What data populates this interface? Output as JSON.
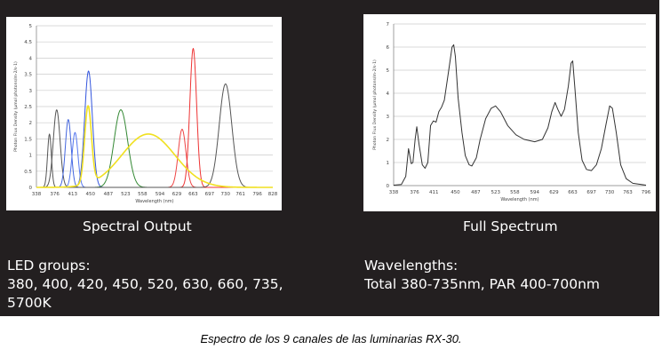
{
  "left_panel": {
    "title": "Spectral Output",
    "heading": "LED groups:",
    "lines": [
      "380, 400, 420, 450, 520, 630, 660, 735,",
      "5700K"
    ]
  },
  "right_panel": {
    "title": "Full Spectrum",
    "heading": "Wavelengths:",
    "lines": [
      "Total 380-735nm, PAR 400-700nm"
    ]
  },
  "caption": "Espectro de los 9 canales de las luminarias RX-30.",
  "chart_data": [
    {
      "type": "line",
      "xlabel": "Wavelength (nm)",
      "ylabel": "Photon Flux Density (µmol photons/m-2/s-1)",
      "x_ticks": [
        "338",
        "376",
        "413",
        "450",
        "487",
        "523",
        "558",
        "594",
        "629",
        "663",
        "697",
        "730",
        "761",
        "796",
        "828"
      ],
      "y_ticks": [
        "0",
        "0.5",
        "1",
        "1.5",
        "2",
        "2.5",
        "3",
        "3.5",
        "4",
        "4.5",
        "5"
      ],
      "xlim": [
        338,
        828
      ],
      "ylim": [
        0,
        5
      ],
      "grid": true,
      "series": [
        {
          "color": "#555555",
          "peaks": [
            {
              "x": 365,
              "y": 1.65,
              "w": 4
            }
          ]
        },
        {
          "color": "#555555",
          "peaks": [
            {
              "x": 380,
              "y": 2.4,
              "w": 7
            }
          ]
        },
        {
          "color": "#4466dd",
          "peaks": [
            {
              "x": 404,
              "y": 2.1,
              "w": 6
            }
          ]
        },
        {
          "color": "#5577ee",
          "peaks": [
            {
              "x": 418,
              "y": 1.7,
              "w": 6
            }
          ]
        },
        {
          "color": "#3355dd",
          "peaks": [
            {
              "x": 446,
              "y": 3.6,
              "w": 8
            }
          ]
        },
        {
          "color": "#338833",
          "peaks": [
            {
              "x": 513,
              "y": 2.4,
              "w": 14
            }
          ]
        },
        {
          "color": "#ee4444",
          "peaks": [
            {
              "x": 640,
              "y": 1.8,
              "w": 8
            }
          ]
        },
        {
          "color": "#ee3333",
          "peaks": [
            {
              "x": 663,
              "y": 4.3,
              "w": 7
            }
          ]
        },
        {
          "color": "#555555",
          "peaks": [
            {
              "x": 730,
              "y": 3.2,
              "w": 13
            }
          ]
        },
        {
          "color": "#f0e020",
          "peaks": [
            {
              "x": 445,
              "y": 2.4,
              "w": 7
            },
            {
              "x": 570,
              "y": 1.65,
              "w": 55
            }
          ]
        }
      ]
    },
    {
      "type": "line",
      "xlabel": "Wavelength (nm)",
      "ylabel": "Photon Flux Density (µmol photons/m-2/s-1)",
      "x_ticks": [
        "338",
        "376",
        "411",
        "450",
        "487",
        "523",
        "558",
        "594",
        "629",
        "663",
        "697",
        "730",
        "763",
        "796"
      ],
      "y_ticks": [
        "0",
        "1",
        "2",
        "3",
        "4",
        "5",
        "6",
        "7"
      ],
      "xlim": [
        338,
        796
      ],
      "ylim": [
        0,
        7
      ],
      "grid": true,
      "series": [
        {
          "color": "#333333",
          "points": [
            [
              338,
              0.02
            ],
            [
              352,
              0.05
            ],
            [
              360,
              0.4
            ],
            [
              365,
              1.6
            ],
            [
              370,
              0.95
            ],
            [
              373,
              1.0
            ],
            [
              377,
              2.0
            ],
            [
              380,
              2.55
            ],
            [
              384,
              1.8
            ],
            [
              390,
              0.9
            ],
            [
              395,
              0.75
            ],
            [
              400,
              1.0
            ],
            [
              405,
              2.6
            ],
            [
              410,
              2.8
            ],
            [
              415,
              2.75
            ],
            [
              420,
              3.2
            ],
            [
              425,
              3.4
            ],
            [
              430,
              3.7
            ],
            [
              438,
              5.0
            ],
            [
              444,
              6.0
            ],
            [
              447,
              6.1
            ],
            [
              450,
              5.6
            ],
            [
              455,
              3.8
            ],
            [
              462,
              2.3
            ],
            [
              468,
              1.3
            ],
            [
              475,
              0.9
            ],
            [
              480,
              0.85
            ],
            [
              488,
              1.2
            ],
            [
              495,
              2.0
            ],
            [
              505,
              2.9
            ],
            [
              515,
              3.35
            ],
            [
              523,
              3.45
            ],
            [
              532,
              3.2
            ],
            [
              545,
              2.6
            ],
            [
              560,
              2.2
            ],
            [
              575,
              2.0
            ],
            [
              594,
              1.9
            ],
            [
              608,
              2.0
            ],
            [
              618,
              2.5
            ],
            [
              625,
              3.2
            ],
            [
              631,
              3.6
            ],
            [
              636,
              3.3
            ],
            [
              642,
              3.0
            ],
            [
              648,
              3.3
            ],
            [
              655,
              4.3
            ],
            [
              660,
              5.3
            ],
            [
              663,
              5.4
            ],
            [
              667,
              4.2
            ],
            [
              673,
              2.3
            ],
            [
              680,
              1.1
            ],
            [
              688,
              0.7
            ],
            [
              697,
              0.65
            ],
            [
              706,
              0.9
            ],
            [
              715,
              1.6
            ],
            [
              723,
              2.6
            ],
            [
              730,
              3.45
            ],
            [
              735,
              3.35
            ],
            [
              742,
              2.3
            ],
            [
              750,
              0.9
            ],
            [
              760,
              0.3
            ],
            [
              772,
              0.1
            ],
            [
              796,
              0.02
            ]
          ]
        }
      ]
    }
  ]
}
